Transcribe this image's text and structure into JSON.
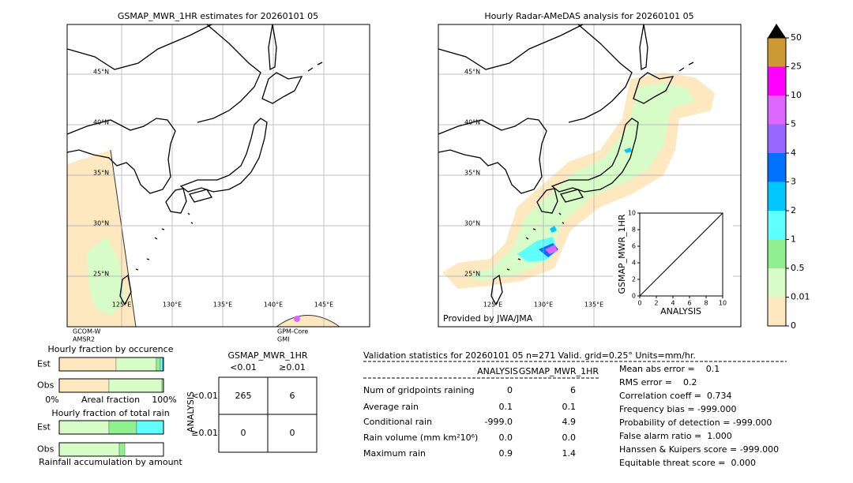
{
  "left_map": {
    "title": "GSMAP_MWR_1HR estimates for 20260101 05",
    "lat_labels": [
      "45°N",
      "40°N",
      "35°N",
      "30°N",
      "25°N"
    ],
    "lon_labels": [
      "125°E",
      "130°E",
      "135°E",
      "140°E",
      "145°E"
    ],
    "sensors": [
      [
        "GCOM-W",
        "AMSR2"
      ],
      [
        "GPM-Core",
        "GMI"
      ]
    ]
  },
  "right_map": {
    "title": "Hourly Radar-AMeDAS analysis for 20260101 05",
    "lat_labels": [
      "45°N",
      "40°N",
      "35°N",
      "30°N",
      "25°N"
    ],
    "lon_labels": [
      "125°E",
      "130°E",
      "135°E"
    ],
    "credit": "Provided by JWA/JMA"
  },
  "inset": {
    "xlabel": "ANALYSIS",
    "ylabel": "GSMAP_MWR_1HR",
    "lim": [
      0,
      10
    ],
    "ticks": [
      0,
      2,
      4,
      6,
      8,
      10
    ]
  },
  "colorbar": {
    "labels": [
      "0",
      "0.01",
      "0.5",
      "1",
      "2",
      "3",
      "4",
      "5",
      "10",
      "25",
      "50"
    ],
    "colors": [
      "#fde8c0",
      "#d8fcc8",
      "#90f090",
      "#60ffff",
      "#00c8ff",
      "#0070ff",
      "#9966ff",
      "#dd66ff",
      "#ff00ff",
      "#cc9933"
    ]
  },
  "occurrence": {
    "title": "Hourly fraction by occurence",
    "xlabels": [
      "0%",
      "Areal fraction",
      "100%"
    ],
    "rows": [
      {
        "name": "Est",
        "values": [
          54.5,
          38.6,
          3.8,
          2.3,
          0.8
        ],
        "colors": [
          "#fde8c0",
          "#d8fcc8",
          "#90f090",
          "#60ffff",
          "#00c8ff"
        ]
      },
      {
        "name": "Obs",
        "values": [
          47.7,
          50.8,
          1.5
        ],
        "colors": [
          "#fde8c0",
          "#d8fcc8",
          "#90f090"
        ]
      }
    ]
  },
  "total_rain": {
    "title": "Hourly fraction of total rain",
    "footer": "Rainfall accumulation by amount",
    "rows": [
      {
        "name": "Est",
        "values": [
          47.7,
          26.5,
          25.8
        ],
        "colors": [
          "#d8fcc8",
          "#90f090",
          "#60ffff"
        ]
      },
      {
        "name": "Obs",
        "values": [
          57.6,
          5.3
        ],
        "colors": [
          "#d8fcc8",
          "#90f090"
        ]
      }
    ]
  },
  "contingency": {
    "title": "GSMAP_MWR_1HR",
    "columns": [
      "<0.01",
      "≥0.01"
    ],
    "ylabel": "ANALYSIS",
    "rows": [
      "<0.01",
      "≥0.01"
    ],
    "cells": [
      [
        "265",
        "6"
      ],
      [
        "0",
        "0"
      ]
    ]
  },
  "stats": {
    "header": "Validation statistics for 20260101 05  n=271 Valid. grid=0.25° Units=mm/hr.",
    "columns": [
      "ANALYSIS",
      "GSMAP_MWR_1HR"
    ],
    "rows": [
      [
        "Num of gridpoints raining",
        "0",
        "6"
      ],
      [
        "Average rain",
        "0.1",
        "0.1"
      ],
      [
        "Conditional rain",
        "-999.0",
        "4.9"
      ],
      [
        "Rain volume (mm km²10⁶)",
        "0.0",
        "0.0"
      ],
      [
        "Maximum rain",
        "0.9",
        "1.4"
      ]
    ],
    "scores": [
      "Mean abs error =    0.1",
      "RMS error =    0.2",
      "Correlation coeff =  0.734",
      "Frequency bias = -999.000",
      "Probability of detection = -999.000",
      "False alarm ratio =  1.000",
      "Hanssen & Kuipers score = -999.000",
      "Equitable threat score =  0.000"
    ]
  }
}
